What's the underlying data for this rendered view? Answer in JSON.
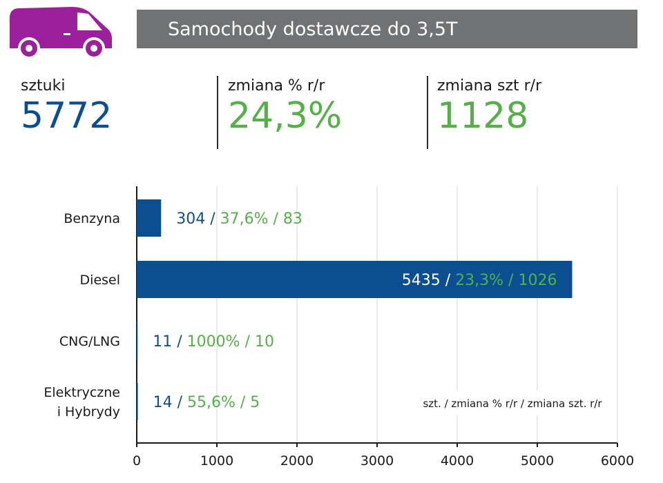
{
  "header": {
    "title": "Samochody dostawcze do 3,5T"
  },
  "stats": [
    {
      "label": "sztuki",
      "value": "5772"
    },
    {
      "label": "zmiana % r/r",
      "value": "24,3%"
    },
    {
      "label": "zmiana szt r/r",
      "value": "1128"
    }
  ],
  "colors": {
    "blue": "#0b4f91",
    "green": "#55b047",
    "title_bg": "#707274",
    "van": "#9c1f9b",
    "grid": "#d4d4d4"
  },
  "chart_data": {
    "type": "bar",
    "orientation": "horizontal",
    "categories": [
      [
        "Benzyna"
      ],
      [
        "Diesel"
      ],
      [
        "CNG/LNG"
      ],
      [
        "Elektryczne",
        "i Hybrydy"
      ]
    ],
    "values": [
      304,
      5435,
      11,
      14
    ],
    "pct_change": [
      "37,6%",
      "23,3%",
      "1000%",
      "55,6%"
    ],
    "abs_change": [
      83,
      1026,
      10,
      5
    ],
    "xlim": [
      0,
      6000
    ],
    "xticks": [
      0,
      1000,
      2000,
      3000,
      4000,
      5000,
      6000
    ],
    "grid": "vertical",
    "legend_note": "szt. / zmiana % r/r / zmiana szt. r/r"
  }
}
